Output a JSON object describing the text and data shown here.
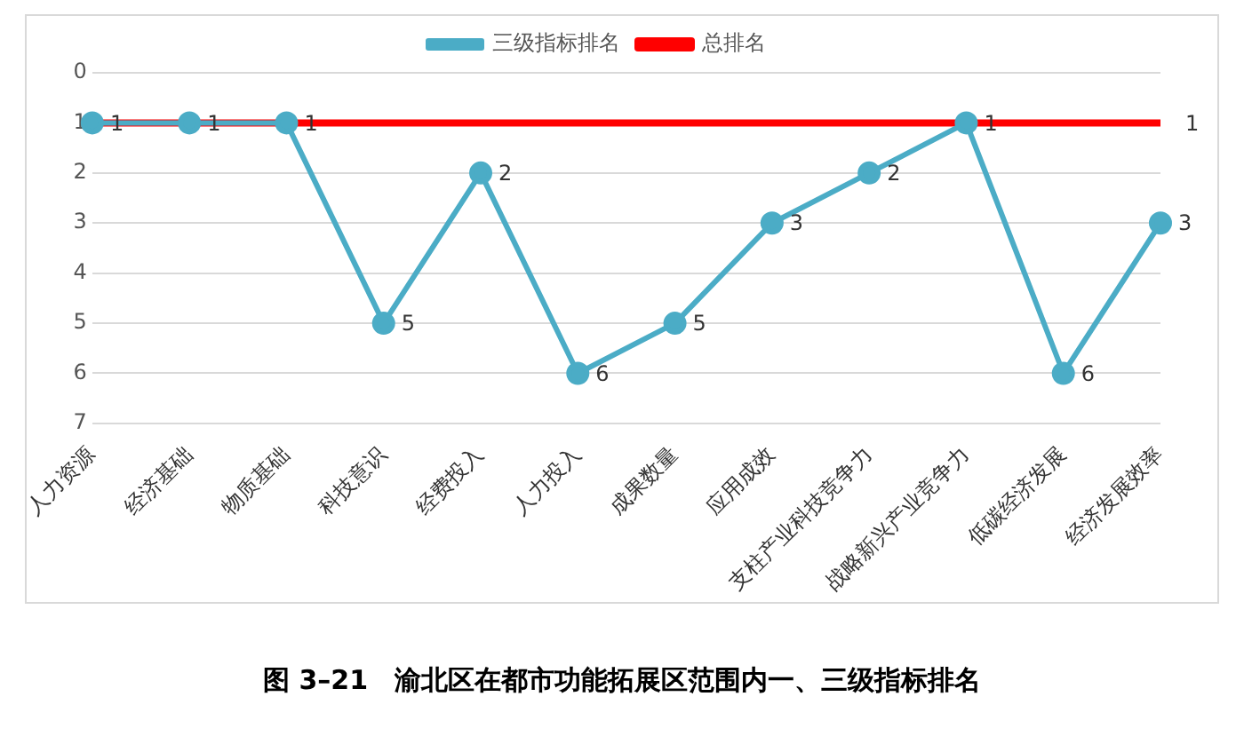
{
  "chart_data": {
    "type": "line",
    "title": "图 3–21　渝北区在都市功能拓展区范围内一、三级指标排名",
    "categories": [
      "人力资源",
      "经济基础",
      "物质基础",
      "科技意识",
      "经费投入",
      "人力投入",
      "成果数量",
      "应用成效",
      "支柱产业科技竞争力",
      "战略新兴产业竞争力",
      "低碳经济发展",
      "经济发展效率"
    ],
    "series": [
      {
        "name": "三级指标排名",
        "color": "#4bacc6",
        "marker": "circle",
        "values": [
          1,
          1,
          1,
          5,
          2,
          6,
          5,
          3,
          2,
          1,
          6,
          3
        ],
        "value_labels": [
          "1",
          "1",
          "1",
          "5",
          "2",
          "6",
          "5",
          "3",
          "2",
          "1",
          "6",
          "3"
        ]
      },
      {
        "name": "总排名",
        "color": "#ff0000",
        "marker": "none",
        "values": [
          1,
          1,
          1,
          1,
          1,
          1,
          1,
          1,
          1,
          1,
          1,
          1
        ],
        "value_labels": [
          null,
          null,
          null,
          null,
          null,
          null,
          null,
          null,
          null,
          null,
          null,
          "1"
        ]
      }
    ],
    "ylim": [
      7,
      0
    ],
    "yticks": [
      0,
      1,
      2,
      3,
      4,
      5,
      6,
      7
    ],
    "grid": "y",
    "legend": "top"
  }
}
